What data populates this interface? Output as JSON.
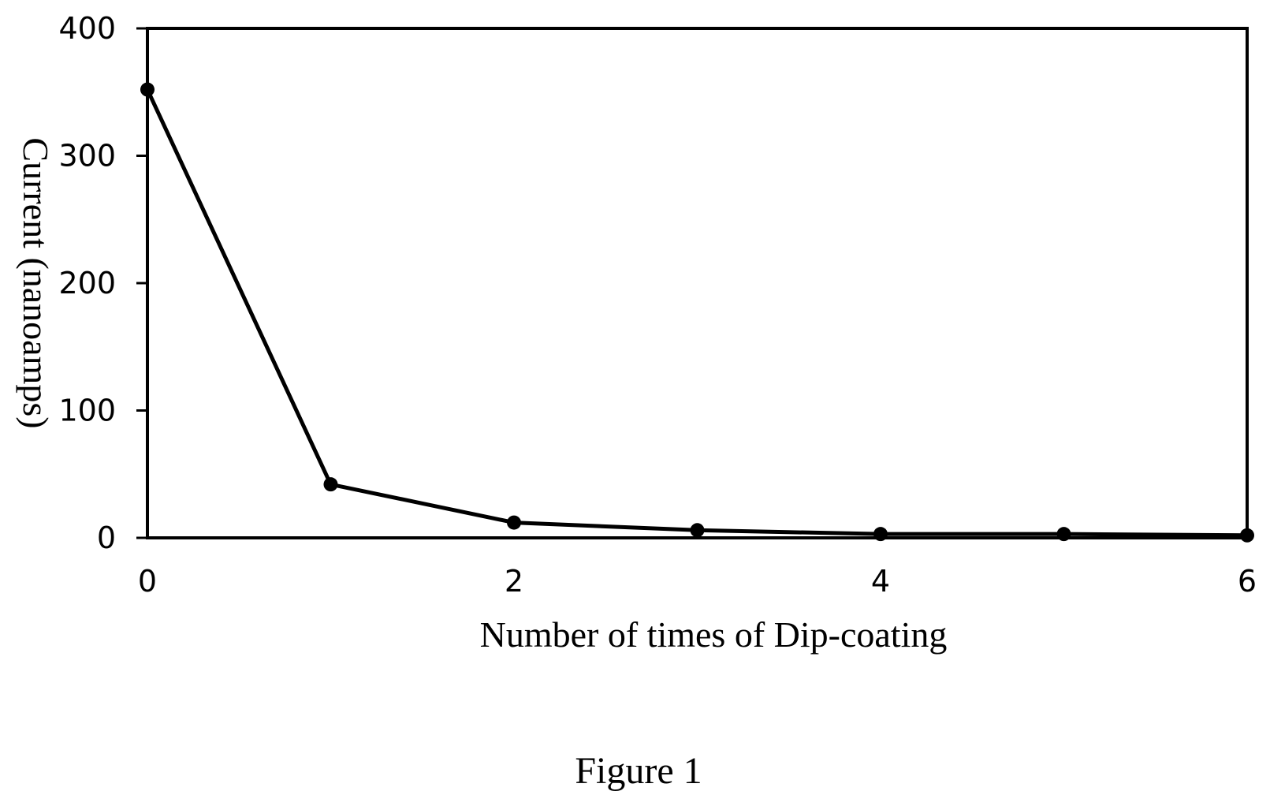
{
  "chart_data": {
    "type": "line",
    "title": "",
    "xlabel": "Number of times of Dip-coating",
    "ylabel": "Current (nanoamps)",
    "xlim": [
      0,
      6
    ],
    "ylim": [
      0,
      400
    ],
    "xticks": [
      "0",
      "2",
      "4",
      "6"
    ],
    "yticks": [
      "0",
      "100",
      "200",
      "300",
      "400"
    ],
    "grid": false,
    "legend": "none",
    "series": [
      {
        "color": "#000000",
        "x": [
          0,
          1,
          2,
          3,
          4,
          5,
          6
        ],
        "y": [
          352,
          42,
          12,
          6,
          3,
          3,
          2
        ]
      }
    ]
  },
  "caption": "Figure 1"
}
